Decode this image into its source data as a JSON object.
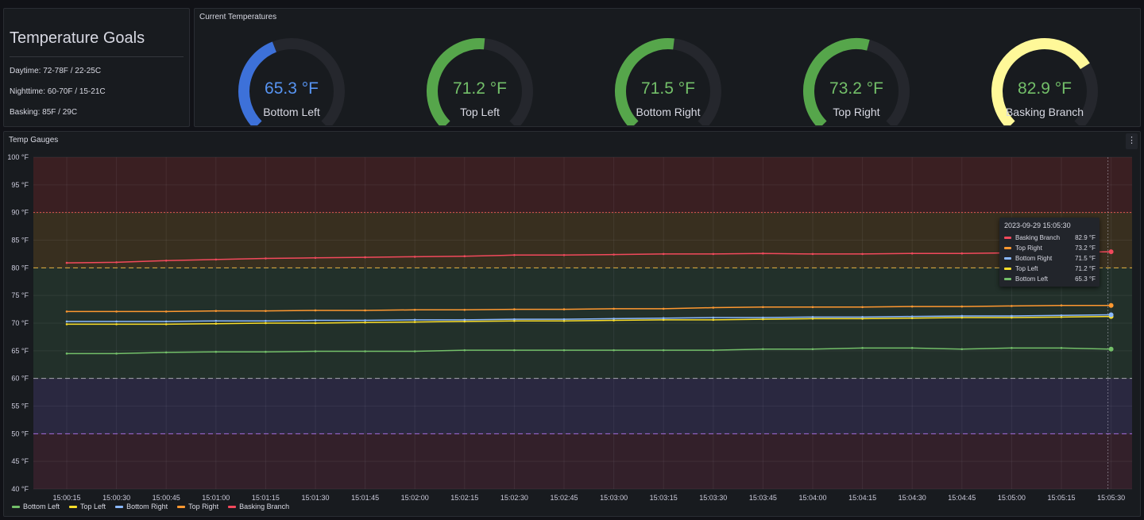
{
  "goals": {
    "title": "Temperature Goals",
    "daytime": "Daytime: 72-78F / 22-25C",
    "nighttime": "Nighttime: 60-70F / 15-21C",
    "basking": "Basking: 85F / 29C"
  },
  "current": {
    "title": "Current Temperatures",
    "gauges": [
      {
        "label": "Bottom Left",
        "value": 65.3,
        "display": "65.3 °F",
        "color": "#5794f2",
        "arc_color": "#3d71d9"
      },
      {
        "label": "Top Left",
        "value": 71.2,
        "display": "71.2 °F",
        "color": "#73bf69",
        "arc_color": "#56a64b"
      },
      {
        "label": "Bottom Right",
        "value": 71.5,
        "display": "71.5 °F",
        "color": "#73bf69",
        "arc_color": "#56a64b"
      },
      {
        "label": "Top Right",
        "value": 73.2,
        "display": "73.2 °F",
        "color": "#73bf69",
        "arc_color": "#56a64b"
      },
      {
        "label": "Basking Branch",
        "value": 82.9,
        "display": "82.9 °F",
        "color": "#73bf69",
        "arc_color": "#fff899"
      }
    ],
    "gauge_min": 40,
    "gauge_max": 100
  },
  "temps_panel": {
    "title": "Temp Gauges",
    "menu_icon": "⋮"
  },
  "chart_data": {
    "type": "line",
    "ylim": [
      40,
      100
    ],
    "yticks": [
      40,
      45,
      50,
      55,
      60,
      65,
      70,
      75,
      80,
      85,
      90,
      95,
      100
    ],
    "yunit": "°F",
    "x": [
      "15:00:15",
      "15:00:30",
      "15:00:45",
      "15:01:00",
      "15:01:15",
      "15:01:30",
      "15:01:45",
      "15:02:00",
      "15:02:15",
      "15:02:30",
      "15:02:45",
      "15:03:00",
      "15:03:15",
      "15:03:30",
      "15:03:45",
      "15:04:00",
      "15:04:15",
      "15:04:30",
      "15:04:45",
      "15:05:00",
      "15:05:15",
      "15:05:30"
    ],
    "grid": true,
    "legend": "bottom-left",
    "bands": [
      {
        "from": 90,
        "to": 100,
        "color": "#3a1f22"
      },
      {
        "from": 80,
        "to": 90,
        "color": "#382f1f"
      },
      {
        "from": 60,
        "to": 80,
        "color": "#22302a"
      },
      {
        "from": 50,
        "to": 60,
        "color": "#2a2840"
      },
      {
        "from": 40,
        "to": 50,
        "color": "#33202a"
      }
    ],
    "thresholds": [
      {
        "value": 90,
        "color": "#e0574f",
        "dash": "dotted"
      },
      {
        "value": 80,
        "color": "#e8b341",
        "dash": "dashed"
      },
      {
        "value": 60,
        "color": "#a6a6b0",
        "dash": "dashed"
      },
      {
        "value": 50,
        "color": "#a46cdd",
        "dash": "dashed"
      }
    ],
    "series": [
      {
        "name": "Bottom Left",
        "color": "#73bf69",
        "values": [
          64.5,
          64.5,
          64.7,
          64.8,
          64.8,
          64.9,
          64.9,
          64.9,
          65.1,
          65.1,
          65.1,
          65.1,
          65.1,
          65.1,
          65.3,
          65.3,
          65.5,
          65.5,
          65.3,
          65.5,
          65.5,
          65.3
        ]
      },
      {
        "name": "Top Left",
        "color": "#fade2a",
        "values": [
          69.8,
          69.8,
          69.8,
          69.9,
          70.0,
          70.0,
          70.1,
          70.2,
          70.3,
          70.4,
          70.4,
          70.5,
          70.6,
          70.6,
          70.7,
          70.8,
          70.8,
          70.9,
          71.0,
          71.0,
          71.1,
          71.2
        ]
      },
      {
        "name": "Bottom Right",
        "color": "#8ab8ff",
        "values": [
          70.3,
          70.3,
          70.3,
          70.4,
          70.4,
          70.5,
          70.5,
          70.6,
          70.6,
          70.7,
          70.7,
          70.8,
          70.9,
          71.0,
          71.0,
          71.1,
          71.1,
          71.2,
          71.3,
          71.3,
          71.4,
          71.5
        ]
      },
      {
        "name": "Top Right",
        "color": "#ff9830",
        "values": [
          72.1,
          72.1,
          72.1,
          72.2,
          72.2,
          72.3,
          72.3,
          72.4,
          72.4,
          72.5,
          72.5,
          72.6,
          72.6,
          72.8,
          72.9,
          72.9,
          72.9,
          73.0,
          73.0,
          73.1,
          73.2,
          73.2
        ]
      },
      {
        "name": "Basking Branch",
        "color": "#f2495c",
        "values": [
          80.9,
          81.0,
          81.3,
          81.5,
          81.7,
          81.8,
          81.9,
          82.0,
          82.1,
          82.3,
          82.3,
          82.4,
          82.5,
          82.5,
          82.6,
          82.5,
          82.5,
          82.6,
          82.6,
          82.7,
          82.8,
          82.9
        ]
      }
    ]
  },
  "tooltip": {
    "timestamp": "2023-09-29 15:05:30",
    "rows": [
      {
        "name": "Basking Branch",
        "value": "82.9 °F",
        "color": "#f2495c"
      },
      {
        "name": "Top Right",
        "value": "73.2 °F",
        "color": "#ff9830"
      },
      {
        "name": "Bottom Right",
        "value": "71.5 °F",
        "color": "#8ab8ff"
      },
      {
        "name": "Top Left",
        "value": "71.2 °F",
        "color": "#fade2a"
      },
      {
        "name": "Bottom Left",
        "value": "65.3 °F",
        "color": "#73bf69"
      }
    ]
  }
}
